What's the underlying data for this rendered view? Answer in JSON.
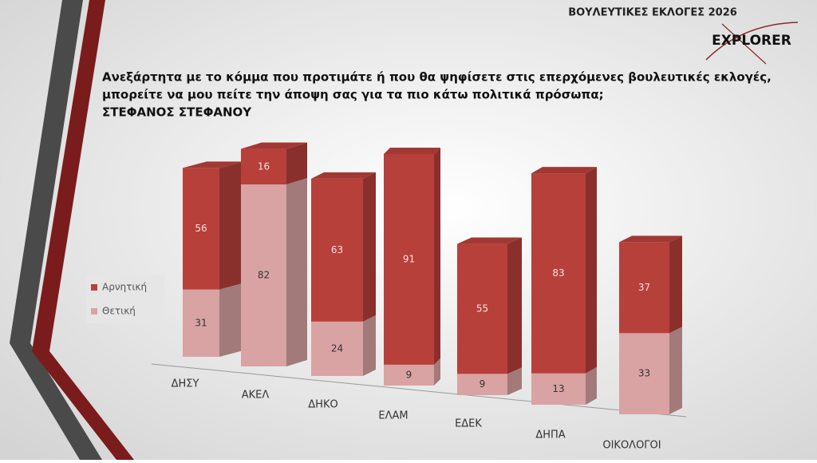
{
  "logo": "EXPLORER",
  "chart_data": {
    "type": "bar",
    "stacked": true,
    "title": "ΒΟΥΛΕΥΤΙΚΕΣ ΕΚΛΟΓΕΣ 2026",
    "subtitle": [
      "Ανεξάρτητα με το κόμμα που προτιμάτε ή που θα ψηφίσετε στις επερχόμενες βουλευτικές εκλογές,",
      "μπορείτε να μου πείτε την άποψη σας για τα πιο κάτω πολιτικά πρόσωπα;",
      "ΣΤΕΦΑΝΟΣ ΣΤΕΦΑΝΟΥ"
    ],
    "categories": [
      "ΔΗΣΥ",
      "ΑΚΕΛ",
      "ΔΗΚΟ",
      "ΕΛΑΜ",
      "ΕΔΕΚ",
      "ΔΗΠΑ",
      "ΟΙΚΟΛΟΓΟΙ"
    ],
    "series": [
      {
        "name": "Θετική",
        "color": "#d9a3a3",
        "values": [
          31,
          82,
          24,
          9,
          9,
          13,
          33
        ]
      },
      {
        "name": "Αρνητική",
        "color": "#b8403a",
        "values": [
          56,
          16,
          63,
          91,
          55,
          83,
          37
        ]
      }
    ],
    "legend": "left"
  }
}
